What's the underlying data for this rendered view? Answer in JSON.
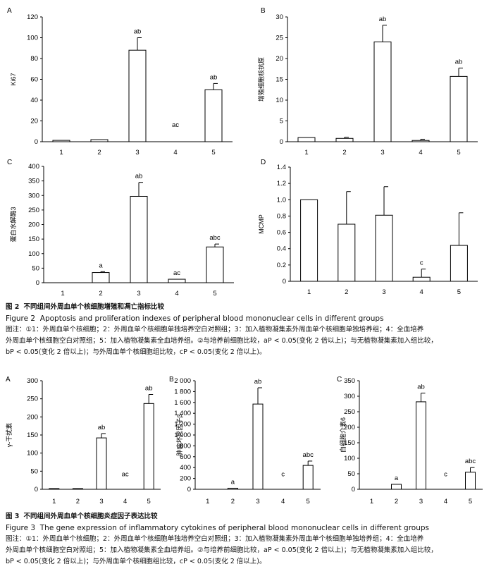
{
  "figure2": {
    "charts": [
      {
        "panel": "A",
        "ylabel": "Ki67",
        "type": "bar",
        "categories": [
          "1",
          "2",
          "3",
          "4",
          "5"
        ],
        "values": [
          1.3,
          2.0,
          88,
          0,
          50
        ],
        "errors": [
          0,
          0,
          12,
          0,
          6
        ],
        "ylim": [
          0,
          120
        ],
        "ticks": [
          0,
          20,
          40,
          60,
          80,
          100,
          120
        ],
        "annotations": [
          "",
          "",
          "ab",
          "ac",
          "ab"
        ]
      },
      {
        "panel": "B",
        "ylabel": "增殖细胞核抗原",
        "type": "bar",
        "categories": [
          "1",
          "2",
          "3",
          "4",
          "5"
        ],
        "values": [
          1.0,
          0.8,
          24,
          0.3,
          15.7
        ],
        "errors": [
          0,
          0.3,
          4,
          0.3,
          2
        ],
        "ylim": [
          0,
          30
        ],
        "ticks": [
          0,
          5,
          10,
          15,
          20,
          25,
          30
        ],
        "annotations": [
          "",
          "",
          "ab",
          "",
          "ab"
        ]
      },
      {
        "panel": "C",
        "ylabel": "蛋白水解酶3",
        "type": "bar",
        "categories": [
          "1",
          "2",
          "3",
          "4",
          "5"
        ],
        "values": [
          0,
          35,
          297,
          12,
          123
        ],
        "errors": [
          0,
          3,
          48,
          0,
          10
        ],
        "ylim": [
          0,
          400
        ],
        "ticks": [
          0,
          50,
          100,
          150,
          200,
          250,
          300,
          350,
          400
        ],
        "annotations": [
          "",
          "a",
          "ab",
          "ac",
          "abc"
        ]
      },
      {
        "panel": "D",
        "ylabel": "MCMP",
        "type": "bar",
        "categories": [
          "1",
          "2",
          "3",
          "4",
          "5"
        ],
        "values": [
          1.0,
          0.7,
          0.81,
          0.05,
          0.44
        ],
        "errors": [
          0,
          0.4,
          0.35,
          0.1,
          0.4
        ],
        "ylim": [
          0,
          1.4
        ],
        "ticks": [
          "0",
          "0.2",
          "0.4",
          "0.6",
          "0.8",
          "1.0",
          "1.2",
          "1.4"
        ],
        "annotations": [
          "",
          "",
          "",
          "c",
          ""
        ]
      }
    ],
    "caption_cn_label": "图 2",
    "caption_cn": "不同组间外周血单个核细胞增殖和凋亡指标比较",
    "caption_en_label": "Figure 2",
    "caption_en": "Apoptosis and proliferation indexes of peripheral blood mononuclear cells in different groups",
    "note_line1": "图注：①1：外周血单个核细胞；2：外周血单个核细胞单独培养空白对照组；3：加入植物凝集素外周血单个核细胞单独培养组；4：全血培养",
    "note_line2": "外周血单个核细胞空白对照组；5：加入植物凝集素全血培养组。②与培养前细胞比较，aP < 0.05(变化 2 倍以上)；与无植物凝集素加入组比较，",
    "note_line3": "bP < 0.05(变化 2 倍以上)；与外周血单个核细胞组比较，cP < 0.05(变化 2 倍以上)。"
  },
  "figure3": {
    "charts": [
      {
        "panel": "A",
        "ylabel": "γ-干扰素",
        "type": "bar",
        "categories": [
          "1",
          "2",
          "3",
          "4",
          "5"
        ],
        "values": [
          2,
          2,
          142,
          0,
          237
        ],
        "errors": [
          0,
          0,
          12,
          0,
          25
        ],
        "ylim": [
          0,
          300
        ],
        "ticks": [
          0,
          50,
          100,
          150,
          200,
          250,
          300
        ],
        "annotations": [
          "",
          "",
          "ab",
          "ac",
          "ab"
        ]
      },
      {
        "panel": "B",
        "ylabel": "肿瘤坏死因子β",
        "type": "bar",
        "categories": [
          "1",
          "2",
          "3",
          "4",
          "5"
        ],
        "values": [
          0,
          20,
          1570,
          0,
          440
        ],
        "errors": [
          0,
          0,
          300,
          0,
          80
        ],
        "ylim": [
          0,
          2000
        ],
        "ticks": [
          "0",
          "200",
          "400",
          "600",
          "800",
          "1 000",
          "1 200",
          "1 400",
          "1 600",
          "1 800",
          "2 000"
        ],
        "annotations": [
          "",
          "a",
          "ab",
          "c",
          "abc"
        ]
      },
      {
        "panel": "C",
        "ylabel": "白细胞介素6",
        "type": "bar",
        "categories": [
          "1",
          "2",
          "3",
          "4",
          "5"
        ],
        "values": [
          0,
          16,
          282,
          0,
          55
        ],
        "errors": [
          0,
          0,
          28,
          0,
          15
        ],
        "ylim": [
          0,
          350
        ],
        "ticks": [
          0,
          50,
          100,
          150,
          200,
          250,
          300,
          350
        ],
        "annotations": [
          "",
          "a",
          "ab",
          "c",
          "abc"
        ]
      }
    ],
    "caption_cn_label": "图 3",
    "caption_cn": "不同组间外周血单个核细胞炎症因子表达比较",
    "caption_en_label": "Figure 3",
    "caption_en": "The gene expression of inflammatory cytokines of peripheral blood mononuclear cells in different groups",
    "note_line1": "图注：①1：外周血单个核细胞；2：外周血单个核细胞单独培养空白对照组；3：加入植物凝集素外周血单个核细胞单独培养组；4：全血培养",
    "note_line2": "外周血单个核细胞空白对照组；5：加入植物凝集素全血培养组。②与培养前细胞比较，aP < 0.05(变化 2 倍以上)；与无植物凝集素加入组比较，",
    "note_line3": "bP < 0.05(变化 2 倍以上)；与外周血单个核细胞组比较，cP < 0.05(变化 2 倍以上)。"
  }
}
